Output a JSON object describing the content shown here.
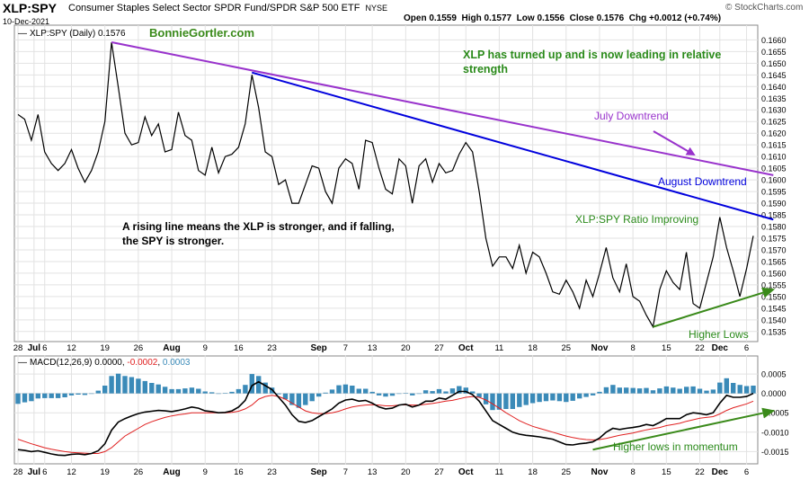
{
  "header": {
    "symbol": "XLP:SPY",
    "description": "Consumer Staples Select Sector SPDR Fund/SPDR S&P 500 ETF",
    "exchange": "NYSE",
    "date": "10-Dec-2021",
    "open_label": "Open",
    "open": "0.1559",
    "high_label": "High",
    "high": "0.1577",
    "low_label": "Low",
    "low": "0.1556",
    "close_label": "Close",
    "close": "0.1576",
    "chg_label": "Chg",
    "chg": "+0.0012 (+0.74%)",
    "brand": "© StockCharts.com"
  },
  "chart_data": [
    {
      "type": "line",
      "legend": "XLP:SPY (Daily) 0.1576",
      "watermark": "BonnieGortler.com",
      "ylim": [
        0.1533,
        0.1664
      ],
      "y_ticks": [
        "0.1660",
        "0.1655",
        "0.1650",
        "0.1645",
        "0.1640",
        "0.1635",
        "0.1630",
        "0.1625",
        "0.1620",
        "0.1615",
        "0.1610",
        "0.1605",
        "0.1600",
        "0.1595",
        "0.1590",
        "0.1585",
        "0.1580",
        "0.1575",
        "0.1570",
        "0.1565",
        "0.1560",
        "0.1555",
        "0.1550",
        "0.1545",
        "0.1540",
        "0.1535"
      ],
      "x_ticks": [
        "28",
        "Jul",
        "6",
        "12",
        "19",
        "26",
        "Aug",
        "9",
        "16",
        "23",
        "Sep",
        "7",
        "13",
        "20",
        "27",
        "Oct",
        "11",
        "18",
        "25",
        "Nov",
        "8",
        "15",
        "22",
        "Dec",
        "6"
      ],
      "grid": true,
      "series": [
        {
          "color": "#000000",
          "values": [
            0.1628,
            0.1626,
            0.1617,
            0.1628,
            0.1612,
            0.1607,
            0.1604,
            0.1607,
            0.1613,
            0.1605,
            0.1599,
            0.1604,
            0.1612,
            0.1625,
            0.1659,
            0.164,
            0.162,
            0.1615,
            0.1616,
            0.1627,
            0.1619,
            0.1624,
            0.1612,
            0.1613,
            0.1629,
            0.1619,
            0.1617,
            0.1604,
            0.1602,
            0.1614,
            0.1603,
            0.161,
            0.1611,
            0.1614,
            0.1624,
            0.1645,
            0.1631,
            0.1612,
            0.161,
            0.1598,
            0.16,
            0.159,
            0.159,
            0.1598,
            0.1606,
            0.1605,
            0.1595,
            0.159,
            0.1605,
            0.1609,
            0.1607,
            0.1596,
            0.1617,
            0.1616,
            0.1605,
            0.1596,
            0.1594,
            0.1609,
            0.1606,
            0.159,
            0.1606,
            0.1609,
            0.1599,
            0.1607,
            0.1603,
            0.1604,
            0.1611,
            0.1616,
            0.1612,
            0.1595,
            0.1575,
            0.1563,
            0.1567,
            0.1567,
            0.1562,
            0.1572,
            0.156,
            0.1569,
            0.1567,
            0.156,
            0.1552,
            0.1551,
            0.1557,
            0.1552,
            0.1545,
            0.1557,
            0.155,
            0.156,
            0.1571,
            0.1558,
            0.1552,
            0.1564,
            0.155,
            0.1548,
            0.1542,
            0.1537,
            0.1553,
            0.1561,
            0.1556,
            0.1553,
            0.1569,
            0.1547,
            0.1545,
            0.1556,
            0.1567,
            0.1584,
            0.1571,
            0.1561,
            0.155,
            0.1562,
            0.1576
          ]
        }
      ],
      "trendlines": [
        {
          "label": "July Downtrend",
          "color": "#9933cc",
          "from": [
            14,
            0.1659
          ],
          "to": [
            113,
            0.1602
          ]
        },
        {
          "label": "August Downtrend",
          "color": "#0000dd",
          "from": [
            35,
            0.1646
          ],
          "to": [
            113,
            0.1583
          ]
        },
        {
          "label": "Higher Lows",
          "color": "#3a8a1a",
          "from": [
            95,
            0.1537
          ],
          "to": [
            113,
            0.1553
          ]
        }
      ],
      "annotations": [
        {
          "text": "XLP has turned up and is now leading in relative",
          "color": "#2a8a1a"
        },
        {
          "text": "strength",
          "color": "#2a8a1a"
        },
        {
          "text": "July Downtrend",
          "color": "#9933cc"
        },
        {
          "text": "August Downtrend",
          "color": "#0000dd"
        },
        {
          "text": "XLP:SPY  Ratio Improving",
          "color": "#2a8a1a"
        },
        {
          "text": "A rising line means the XLP is stronger, and if falling,",
          "color": "#000000"
        },
        {
          "text": "the SPY is stronger.",
          "color": "#000000"
        },
        {
          "text": "Higher Lows",
          "color": "#2a8a1a"
        }
      ]
    },
    {
      "type": "bar",
      "legend": {
        "label": "MACD(12,26,9)",
        "macd": "0.0000",
        "signal": "-0.0002",
        "hist": "0.0003"
      },
      "ylim": [
        -0.0017,
        0.00085
      ],
      "y_ticks": [
        "0.0005",
        "0.0000",
        "-0.0005",
        "-0.0010",
        "-0.0015"
      ],
      "x_ticks": [
        "28",
        "Jul",
        "6",
        "12",
        "19",
        "26",
        "Aug",
        "9",
        "16",
        "23",
        "Sep",
        "7",
        "13",
        "20",
        "27",
        "Oct",
        "11",
        "18",
        "25",
        "Nov",
        "8",
        "15",
        "22",
        "Dec",
        "6"
      ],
      "grid": true,
      "series": [
        {
          "name": "MACD",
          "color": "#000000",
          "values": [
            -0.00145,
            -0.00147,
            -0.0015,
            -0.00148,
            -0.00152,
            -0.00156,
            -0.00159,
            -0.0016,
            -0.00157,
            -0.00156,
            -0.00158,
            -0.00155,
            -0.00148,
            -0.0013,
            -0.00095,
            -0.00074,
            -0.00065,
            -0.00058,
            -0.00052,
            -0.00048,
            -0.00046,
            -0.00044,
            -0.00045,
            -0.00047,
            -0.00044,
            -0.0004,
            -0.00035,
            -0.00038,
            -0.00045,
            -0.00047,
            -0.0005,
            -0.00049,
            -0.00045,
            -0.00035,
            -0.00018,
            0.0002,
            0.0003,
            0.0002,
            0.0001,
            -0.0001,
            -0.0003,
            -0.00055,
            -0.00072,
            -0.00075,
            -0.0007,
            -0.0006,
            -0.0005,
            -0.0004,
            -0.00025,
            -0.00017,
            -0.00015,
            -0.0002,
            -0.00018,
            -0.00025,
            -0.00035,
            -0.0004,
            -0.00038,
            -0.0003,
            -0.00028,
            -0.00035,
            -0.0003,
            -0.0002,
            -0.0002,
            -0.00012,
            -0.00015,
            -5e-05,
            5e-05,
            5e-05,
            -3e-05,
            -0.0002,
            -0.00045,
            -0.0007,
            -0.0008,
            -0.0009,
            -0.001,
            -0.00105,
            -0.00108,
            -0.0011,
            -0.00112,
            -0.00115,
            -0.00118,
            -0.00125,
            -0.00132,
            -0.00133,
            -0.0013,
            -0.00128,
            -0.00125,
            -0.00115,
            -0.001,
            -0.0009,
            -0.00093,
            -0.0009,
            -0.00088,
            -0.00085,
            -0.0008,
            -0.00083,
            -0.00075,
            -0.00065,
            -0.00065,
            -0.00065,
            -0.00055,
            -0.0005,
            -0.00052,
            -0.00055,
            -0.0005,
            -0.00025,
            -5e-05,
            -0.0001,
            -0.0001,
            -8e-05,
            0.0
          ]
        },
        {
          "name": "Signal",
          "color": "#e02020",
          "values": [
            -0.00118,
            -0.00124,
            -0.0013,
            -0.00135,
            -0.0014,
            -0.00144,
            -0.00147,
            -0.0015,
            -0.00152,
            -0.00153,
            -0.00154,
            -0.00155,
            -0.00155,
            -0.0015,
            -0.0014,
            -0.00125,
            -0.0011,
            -0.001,
            -0.0009,
            -0.0008,
            -0.00073,
            -0.00067,
            -0.00062,
            -0.00058,
            -0.00055,
            -0.00053,
            -0.0005,
            -0.0005,
            -0.0005,
            -0.0005,
            -0.0005,
            -0.0005,
            -0.00049,
            -0.00046,
            -0.0004,
            -0.0003,
            -0.00015,
            -8e-05,
            -5e-05,
            -8e-05,
            -0.00015,
            -0.00025,
            -0.00035,
            -0.00045,
            -0.0005,
            -0.00052,
            -0.00052,
            -0.0005,
            -0.00046,
            -0.0004,
            -0.00035,
            -0.00032,
            -0.0003,
            -0.00029,
            -0.0003,
            -0.00032,
            -0.00032,
            -0.0003,
            -0.00029,
            -0.0003,
            -0.0003,
            -0.00028,
            -0.00026,
            -0.00023,
            -0.0002,
            -0.00018,
            -0.00014,
            -0.0001,
            -8e-05,
            -0.0001,
            -0.00017,
            -0.00027,
            -0.00038,
            -0.0005,
            -0.0006,
            -0.0007,
            -0.00078,
            -0.00085,
            -0.0009,
            -0.00095,
            -0.001,
            -0.00105,
            -0.0011,
            -0.00114,
            -0.00117,
            -0.00119,
            -0.0012,
            -0.00119,
            -0.00116,
            -0.00112,
            -0.00108,
            -0.00105,
            -0.00102,
            -0.00098,
            -0.00094,
            -0.00091,
            -0.00088,
            -0.00083,
            -0.0008,
            -0.00077,
            -0.00072,
            -0.00068,
            -0.00064,
            -0.00062,
            -0.0006,
            -0.00053,
            -0.00044,
            -0.00037,
            -0.00032,
            -0.00027,
            -0.0002
          ]
        }
      ],
      "trendlines": [
        {
          "label": "Higher lows in momentum",
          "color": "#3a8a1a",
          "from": [
            86,
            -0.00145
          ],
          "to": [
            113,
            -0.00045
          ]
        }
      ],
      "annotations": [
        {
          "text": "Higher lows in momentum",
          "color": "#2a8a1a"
        }
      ]
    }
  ]
}
